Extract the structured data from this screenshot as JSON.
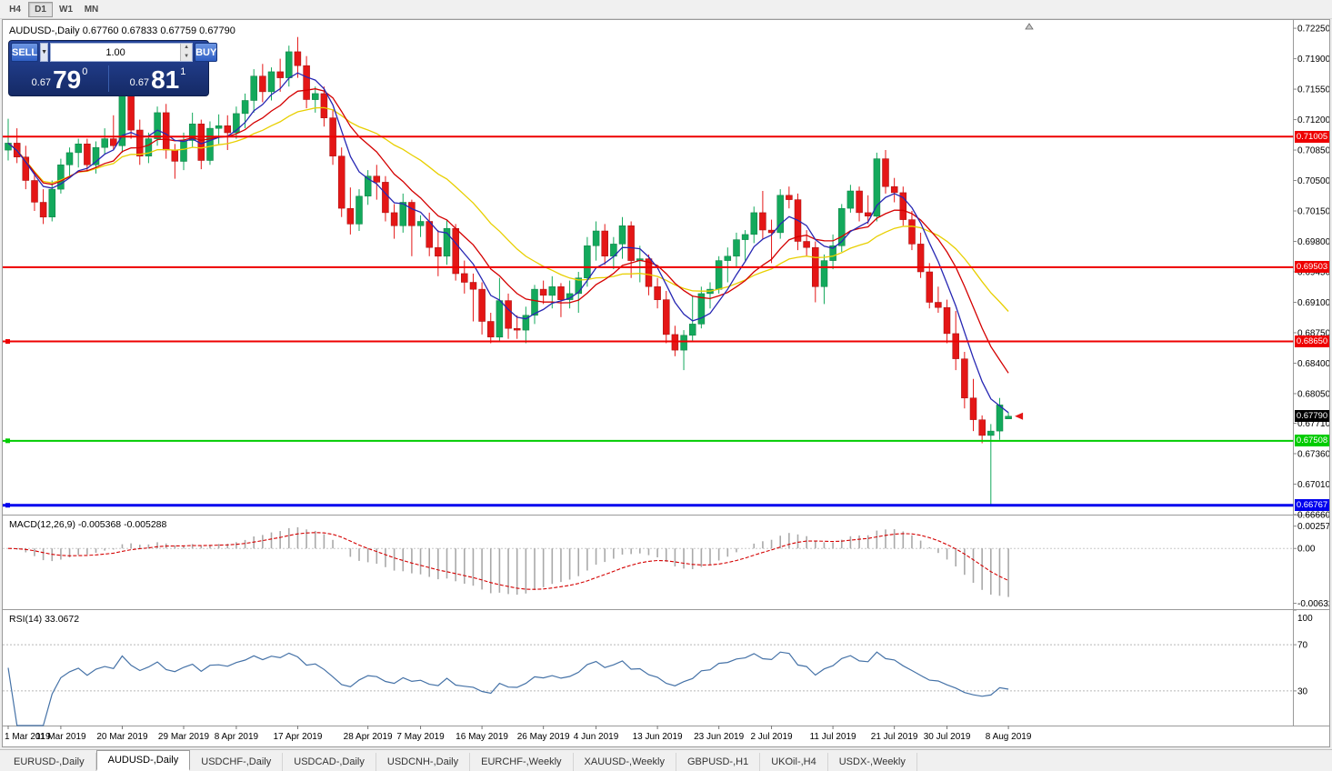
{
  "toolbar": {
    "timeframes": [
      {
        "label": "H4",
        "active": false
      },
      {
        "label": "D1",
        "active": true
      },
      {
        "label": "W1",
        "active": false
      },
      {
        "label": "MN",
        "active": false
      }
    ]
  },
  "chart": {
    "title_symbol": "AUDUSD-,Daily",
    "title_ohlc": "0.67760 0.67833 0.67759 0.67790",
    "symbol": "AUDUSD",
    "period": "Daily"
  },
  "trade_panel": {
    "sell_label": "SELL",
    "buy_label": "BUY",
    "volume": "1.00",
    "sell_price": {
      "prefix": "0.67",
      "big": "79",
      "sup": "0"
    },
    "buy_price": {
      "prefix": "0.67",
      "big": "81",
      "sup": "1"
    }
  },
  "price_axis": {
    "labels": [
      "0.72250",
      "0.71900",
      "0.71550",
      "0.71200",
      "0.70850",
      "0.70500",
      "0.70150",
      "0.69800",
      "0.69450",
      "0.69100",
      "0.68750",
      "0.68400",
      "0.68050",
      "0.67710",
      "0.67360",
      "0.67010",
      "0.66660"
    ]
  },
  "hlines": [
    {
      "price": 0.71005,
      "label": "0.71005",
      "color": "#ee0000",
      "width": 2,
      "handle": false
    },
    {
      "price": 0.69503,
      "label": "0.69503",
      "color": "#ee0000",
      "width": 2,
      "handle": false
    },
    {
      "price": 0.6865,
      "label": "0.68650",
      "color": "#ee0000",
      "width": 2,
      "handle": true
    },
    {
      "price": 0.67508,
      "label": "0.67508",
      "color": "#00cc00",
      "width": 2,
      "handle": true
    },
    {
      "price": 0.66767,
      "label": "0.66767",
      "color": "#0000ee",
      "width": 3,
      "handle": true
    }
  ],
  "current_price": {
    "value": 0.6779,
    "label": "0.67790",
    "badge_color": "#000000"
  },
  "macd_panel": {
    "label": "MACD(12,26,9) -0.005368 -0.005288",
    "params": [
      12,
      26,
      9
    ],
    "axis": [
      {
        "label": "0.002574",
        "value": 0.002574
      },
      {
        "label": "0.00",
        "value": 0.0
      },
      {
        "label": "-0.006326",
        "value": -0.006326
      }
    ],
    "histogram_color": "#a9a9a9",
    "signal_color": "#d40000"
  },
  "rsi_panel": {
    "label": "RSI(14) 33.0672",
    "period": 14,
    "value": 33.0672,
    "line_color": "#4572a7",
    "axis": [
      {
        "label": "100",
        "value": 100
      },
      {
        "label": "70",
        "value": 70
      },
      {
        "label": "30",
        "value": 30
      }
    ]
  },
  "tabs": [
    {
      "label": "EURUSD-,Daily",
      "active": false
    },
    {
      "label": "AUDUSD-,Daily",
      "active": true
    },
    {
      "label": "USDCHF-,Daily",
      "active": false
    },
    {
      "label": "USDCAD-,Daily",
      "active": false
    },
    {
      "label": "USDCNH-,Daily",
      "active": false
    },
    {
      "label": "EURCHF-,Weekly",
      "active": false
    },
    {
      "label": "XAUUSD-,Weekly",
      "active": false
    },
    {
      "label": "GBPUSD-,H1",
      "active": false
    },
    {
      "label": "UKOil-,H4",
      "active": false
    },
    {
      "label": "USDX-,Weekly",
      "active": false
    }
  ],
  "chart_data": {
    "type": "candlestick",
    "symbol": "AUDUSD",
    "timeframe": "Daily",
    "up_color": "#13a95c",
    "down_color": "#e41616",
    "moving_averages": [
      {
        "period": 30,
        "type": "lwma",
        "color": "#e8cf00"
      },
      {
        "period": 15,
        "type": "lwma",
        "color": "#d40000"
      },
      {
        "period": 8,
        "type": "lwma",
        "color": "#2727b3"
      }
    ],
    "date_ticks": [
      {
        "label": "1 Mar 2019",
        "bar": 0
      },
      {
        "label": "11 Mar 2019",
        "bar": 6
      },
      {
        "label": "20 Mar 2019",
        "bar": 13
      },
      {
        "label": "29 Mar 2019",
        "bar": 20
      },
      {
        "label": "8 Apr 2019",
        "bar": 26
      },
      {
        "label": "17 Apr 2019",
        "bar": 33
      },
      {
        "label": "28 Apr 2019",
        "bar": 41
      },
      {
        "label": "7 May 2019",
        "bar": 47
      },
      {
        "label": "16 May 2019",
        "bar": 54
      },
      {
        "label": "26 May 2019",
        "bar": 61
      },
      {
        "label": "4 Jun 2019",
        "bar": 67
      },
      {
        "label": "13 Jun 2019",
        "bar": 74
      },
      {
        "label": "23 Jun 2019",
        "bar": 81
      },
      {
        "label": "2 Jul 2019",
        "bar": 87
      },
      {
        "label": "11 Jul 2019",
        "bar": 94
      },
      {
        "label": "21 Jul 2019",
        "bar": 101
      },
      {
        "label": "30 Jul 2019",
        "bar": 107
      },
      {
        "label": "8 Aug 2019",
        "bar": 114
      }
    ],
    "bars": [
      [
        "2019.03.01",
        0.7085,
        0.7121,
        0.7073,
        0.7093
      ],
      [
        "2019.03.04",
        0.7093,
        0.711,
        0.707,
        0.7077
      ],
      [
        "2019.03.05",
        0.7077,
        0.709,
        0.704,
        0.705
      ],
      [
        "2019.03.06",
        0.705,
        0.706,
        0.7015,
        0.7025
      ],
      [
        "2019.03.07",
        0.7025,
        0.704,
        0.7,
        0.7008
      ],
      [
        "2019.03.08",
        0.7008,
        0.705,
        0.7003,
        0.704
      ],
      [
        "2019.03.11",
        0.704,
        0.7075,
        0.7035,
        0.7068
      ],
      [
        "2019.03.12",
        0.7068,
        0.7088,
        0.7055,
        0.7082
      ],
      [
        "2019.03.13",
        0.7082,
        0.7098,
        0.7065,
        0.7092
      ],
      [
        "2019.03.14",
        0.7092,
        0.7098,
        0.706,
        0.7068
      ],
      [
        "2019.03.15",
        0.7068,
        0.7095,
        0.7058,
        0.7088
      ],
      [
        "2019.03.18",
        0.7088,
        0.711,
        0.708,
        0.7098
      ],
      [
        "2019.03.19",
        0.7098,
        0.7125,
        0.7085,
        0.709
      ],
      [
        "2019.03.20",
        0.709,
        0.7168,
        0.7082,
        0.7153
      ],
      [
        "2019.03.21",
        0.7153,
        0.716,
        0.7098,
        0.7108
      ],
      [
        "2019.03.22",
        0.7108,
        0.712,
        0.7068,
        0.7078
      ],
      [
        "2019.03.25",
        0.7078,
        0.7105,
        0.707,
        0.7098
      ],
      [
        "2019.03.26",
        0.7098,
        0.7135,
        0.709,
        0.7128
      ],
      [
        "2019.03.27",
        0.7128,
        0.7138,
        0.7075,
        0.7085
      ],
      [
        "2019.03.28",
        0.7085,
        0.7092,
        0.7052,
        0.7072
      ],
      [
        "2019.03.29",
        0.7072,
        0.7105,
        0.7062,
        0.7096
      ],
      [
        "2019.04.01",
        0.7096,
        0.7128,
        0.7088,
        0.7115
      ],
      [
        "2019.04.02",
        0.7115,
        0.712,
        0.7063,
        0.7073
      ],
      [
        "2019.04.03",
        0.7073,
        0.7118,
        0.7068,
        0.711
      ],
      [
        "2019.04.04",
        0.711,
        0.7126,
        0.7092,
        0.7113
      ],
      [
        "2019.04.05",
        0.7113,
        0.7125,
        0.7085,
        0.7105
      ],
      [
        "2019.04.08",
        0.7105,
        0.7135,
        0.7098,
        0.7127
      ],
      [
        "2019.04.09",
        0.7127,
        0.715,
        0.711,
        0.7142
      ],
      [
        "2019.04.10",
        0.7142,
        0.7178,
        0.7128,
        0.717
      ],
      [
        "2019.04.11",
        0.717,
        0.7184,
        0.714,
        0.7152
      ],
      [
        "2019.04.12",
        0.7152,
        0.718,
        0.7142,
        0.7175
      ],
      [
        "2019.04.15",
        0.7175,
        0.719,
        0.7152,
        0.7168
      ],
      [
        "2019.04.16",
        0.7168,
        0.7205,
        0.7158,
        0.7198
      ],
      [
        "2019.04.17",
        0.7198,
        0.7215,
        0.7168,
        0.7182
      ],
      [
        "2019.04.18",
        0.7182,
        0.7193,
        0.7133,
        0.7143
      ],
      [
        "2019.04.19",
        0.7143,
        0.7158,
        0.7128,
        0.715
      ],
      [
        "2019.04.22",
        0.715,
        0.7158,
        0.7112,
        0.7122
      ],
      [
        "2019.04.23",
        0.7122,
        0.7132,
        0.7068,
        0.7078
      ],
      [
        "2019.04.24",
        0.7078,
        0.7088,
        0.7008,
        0.7018
      ],
      [
        "2019.04.25",
        0.7018,
        0.7042,
        0.6988,
        0.7
      ],
      [
        "2019.04.26",
        0.7,
        0.704,
        0.6992,
        0.7032
      ],
      [
        "2019.04.29",
        0.7032,
        0.7062,
        0.7022,
        0.7055
      ],
      [
        "2019.04.30",
        0.7055,
        0.7068,
        0.7028,
        0.7048
      ],
      [
        "2019.05.01",
        0.7048,
        0.7055,
        0.7003,
        0.7013
      ],
      [
        "2019.05.02",
        0.7013,
        0.7023,
        0.6983,
        0.6998
      ],
      [
        "2019.05.03",
        0.6998,
        0.7035,
        0.699,
        0.7025
      ],
      [
        "2019.05.06",
        0.7025,
        0.7028,
        0.6963,
        0.6998
      ],
      [
        "2019.05.07",
        0.6998,
        0.701,
        0.6985,
        0.7003
      ],
      [
        "2019.05.08",
        0.7003,
        0.7013,
        0.6963,
        0.6973
      ],
      [
        "2019.05.09",
        0.6973,
        0.6993,
        0.694,
        0.6963
      ],
      [
        "2019.05.10",
        0.6963,
        0.7005,
        0.6953,
        0.6995
      ],
      [
        "2019.05.13",
        0.6995,
        0.7,
        0.6935,
        0.6943
      ],
      [
        "2019.05.14",
        0.6943,
        0.6958,
        0.692,
        0.6933
      ],
      [
        "2019.05.15",
        0.6933,
        0.6943,
        0.6888,
        0.6925
      ],
      [
        "2019.05.16",
        0.6925,
        0.6933,
        0.6873,
        0.6888
      ],
      [
        "2019.05.17",
        0.6888,
        0.6898,
        0.6863,
        0.687
      ],
      [
        "2019.05.20",
        0.687,
        0.6938,
        0.6865,
        0.6912
      ],
      [
        "2019.05.21",
        0.6912,
        0.692,
        0.6868,
        0.688
      ],
      [
        "2019.05.22",
        0.688,
        0.6895,
        0.6868,
        0.6878
      ],
      [
        "2019.05.23",
        0.6878,
        0.6905,
        0.6863,
        0.6895
      ],
      [
        "2019.05.24",
        0.6895,
        0.693,
        0.6885,
        0.6925
      ],
      [
        "2019.05.27",
        0.6925,
        0.6935,
        0.6908,
        0.6918
      ],
      [
        "2019.05.28",
        0.6918,
        0.694,
        0.6903,
        0.6928
      ],
      [
        "2019.05.29",
        0.6928,
        0.6932,
        0.6893,
        0.6913
      ],
      [
        "2019.05.30",
        0.6913,
        0.6935,
        0.6903,
        0.692
      ],
      [
        "2019.05.31",
        0.692,
        0.6945,
        0.6898,
        0.6938
      ],
      [
        "2019.06.03",
        0.6938,
        0.6985,
        0.6928,
        0.6975
      ],
      [
        "2019.06.04",
        0.6975,
        0.7003,
        0.6958,
        0.6992
      ],
      [
        "2019.06.05",
        0.6992,
        0.7,
        0.6953,
        0.6963
      ],
      [
        "2019.06.06",
        0.6963,
        0.6985,
        0.6948,
        0.6977
      ],
      [
        "2019.06.07",
        0.6977,
        0.7008,
        0.696,
        0.6998
      ],
      [
        "2019.06.10",
        0.6998,
        0.7003,
        0.6938,
        0.6958
      ],
      [
        "2019.06.11",
        0.6958,
        0.6975,
        0.6933,
        0.696
      ],
      [
        "2019.06.12",
        0.696,
        0.6965,
        0.6918,
        0.6928
      ],
      [
        "2019.06.13",
        0.6928,
        0.6938,
        0.6903,
        0.6913
      ],
      [
        "2019.06.14",
        0.6913,
        0.6923,
        0.6863,
        0.6873
      ],
      [
        "2019.06.17",
        0.6873,
        0.6883,
        0.6848,
        0.6855
      ],
      [
        "2019.06.18",
        0.6855,
        0.6878,
        0.6832,
        0.6872
      ],
      [
        "2019.06.19",
        0.6872,
        0.6918,
        0.6866,
        0.6885
      ],
      [
        "2019.06.20",
        0.6885,
        0.6928,
        0.688,
        0.692
      ],
      [
        "2019.06.21",
        0.692,
        0.6933,
        0.6903,
        0.6925
      ],
      [
        "2019.06.24",
        0.6925,
        0.6963,
        0.692,
        0.6958
      ],
      [
        "2019.06.25",
        0.6958,
        0.6973,
        0.6933,
        0.6963
      ],
      [
        "2019.06.26",
        0.6963,
        0.699,
        0.695,
        0.6982
      ],
      [
        "2019.06.27",
        0.6982,
        0.6993,
        0.6958,
        0.6988
      ],
      [
        "2019.06.28",
        0.6988,
        0.702,
        0.6978,
        0.7013
      ],
      [
        "2019.07.01",
        0.7013,
        0.7038,
        0.6983,
        0.6993
      ],
      [
        "2019.07.02",
        0.6993,
        0.7005,
        0.6955,
        0.699
      ],
      [
        "2019.07.03",
        0.699,
        0.704,
        0.6983,
        0.7033
      ],
      [
        "2019.07.04",
        0.7033,
        0.7043,
        0.7018,
        0.7028
      ],
      [
        "2019.07.05",
        0.7028,
        0.7035,
        0.697,
        0.698
      ],
      [
        "2019.07.08",
        0.698,
        0.6993,
        0.6963,
        0.6973
      ],
      [
        "2019.07.09",
        0.6973,
        0.698,
        0.691,
        0.6928
      ],
      [
        "2019.07.10",
        0.6928,
        0.6965,
        0.6908,
        0.6958
      ],
      [
        "2019.07.11",
        0.6958,
        0.6988,
        0.6948,
        0.6975
      ],
      [
        "2019.07.12",
        0.6975,
        0.7023,
        0.6968,
        0.7018
      ],
      [
        "2019.07.15",
        0.7018,
        0.7045,
        0.7013,
        0.7038
      ],
      [
        "2019.07.16",
        0.7038,
        0.7043,
        0.7003,
        0.7013
      ],
      [
        "2019.07.17",
        0.7013,
        0.7033,
        0.7,
        0.7009
      ],
      [
        "2019.07.18",
        0.7009,
        0.7082,
        0.7003,
        0.7075
      ],
      [
        "2019.07.19",
        0.7075,
        0.7085,
        0.7035,
        0.7043
      ],
      [
        "2019.07.22",
        0.7043,
        0.7053,
        0.7025,
        0.7036
      ],
      [
        "2019.07.23",
        0.7036,
        0.7043,
        0.6998,
        0.7005
      ],
      [
        "2019.07.24",
        0.7005,
        0.7015,
        0.697,
        0.6977
      ],
      [
        "2019.07.25",
        0.6977,
        0.699,
        0.6938,
        0.6945
      ],
      [
        "2019.07.26",
        0.6945,
        0.6955,
        0.6903,
        0.691
      ],
      [
        "2019.07.29",
        0.691,
        0.6928,
        0.6898,
        0.6904
      ],
      [
        "2019.07.30",
        0.6904,
        0.6913,
        0.6863,
        0.6874
      ],
      [
        "2019.07.31",
        0.6874,
        0.69,
        0.6832,
        0.6845
      ],
      [
        "2019.08.01",
        0.6845,
        0.6853,
        0.6788,
        0.68
      ],
      [
        "2019.08.02",
        0.68,
        0.6822,
        0.6762,
        0.6775
      ],
      [
        "2019.08.05",
        0.6775,
        0.678,
        0.6748,
        0.6757
      ],
      [
        "2019.08.06",
        0.6757,
        0.677,
        0.6677,
        0.6762
      ],
      [
        "2019.08.07",
        0.6762,
        0.68,
        0.6752,
        0.6792
      ],
      [
        "2019.08.08",
        0.6776,
        0.67833,
        0.67759,
        0.6779
      ]
    ]
  }
}
